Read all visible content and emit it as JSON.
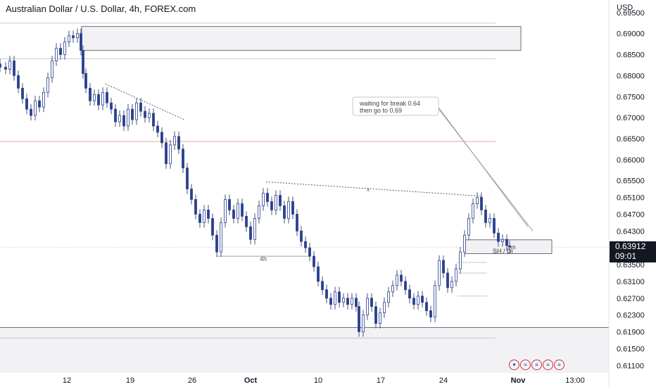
{
  "header": {
    "title": "Australian Dollar / U.S. Dollar, 4h, FOREX.com"
  },
  "price_axis": {
    "currency": "USD",
    "current_price": "0.63912",
    "countdown": "09:01"
  },
  "annotations": {
    "note_line1": "waiting for break 0.64",
    "note_line2": "then go to 0.69",
    "range_label": "4h",
    "trendline_mark": "x",
    "target_box_label": "SH / Di",
    "tiny_label": "m"
  },
  "events": {
    "flag_icons": [
      "au-flag-icon",
      "us-flag-icon",
      "us-flag-icon",
      "us-flag-icon",
      "us-flag-icon"
    ]
  },
  "colors": {
    "bull": "#ffffff",
    "bear": "#2a3f8f",
    "wick": "#4a5270",
    "zone_fill": "#f2f2f5",
    "zone_stroke": "#6b6f7a"
  },
  "chart_data": {
    "type": "candlestick",
    "title": "Australian Dollar / U.S. Dollar, 4h, FOREX.com",
    "ylabel": "USD",
    "ylim": [
      0.6092,
      0.698
    ],
    "y_ticks": [
      "0.69500",
      "0.69000",
      "0.68500",
      "0.68000",
      "0.67500",
      "0.67000",
      "0.66500",
      "0.66000",
      "0.65500",
      "0.65100",
      "0.64700",
      "0.64300",
      "0.63912",
      "0.63500",
      "0.63100",
      "0.62700",
      "0.62300",
      "0.61900",
      "0.61500",
      "0.61100"
    ],
    "x_ticks": [
      {
        "label": "12",
        "t": 95
      },
      {
        "label": "19",
        "t": 185
      },
      {
        "label": "26",
        "t": 273
      },
      {
        "label": "Oct",
        "t": 356
      },
      {
        "label": "10",
        "t": 452
      },
      {
        "label": "17",
        "t": 541
      },
      {
        "label": "24",
        "t": 630
      },
      {
        "label": "Nov",
        "t": 736
      },
      {
        "label": "13:00",
        "t": 817
      }
    ],
    "t_domain": [
      0,
      865
    ],
    "closes": [
      {
        "t": 0,
        "c": 0.682
      },
      {
        "t": 8,
        "c": 0.6815
      },
      {
        "t": 14,
        "c": 0.6835
      },
      {
        "t": 20,
        "c": 0.68
      },
      {
        "t": 26,
        "c": 0.677
      },
      {
        "t": 32,
        "c": 0.6745
      },
      {
        "t": 38,
        "c": 0.672
      },
      {
        "t": 44,
        "c": 0.6705
      },
      {
        "t": 50,
        "c": 0.674
      },
      {
        "t": 56,
        "c": 0.6725
      },
      {
        "t": 62,
        "c": 0.676
      },
      {
        "t": 68,
        "c": 0.6795
      },
      {
        "t": 74,
        "c": 0.6835
      },
      {
        "t": 80,
        "c": 0.6865
      },
      {
        "t": 86,
        "c": 0.685
      },
      {
        "t": 92,
        "c": 0.688
      },
      {
        "t": 98,
        "c": 0.6895
      },
      {
        "t": 104,
        "c": 0.689
      },
      {
        "t": 110,
        "c": 0.69
      },
      {
        "t": 115,
        "c": 0.686
      },
      {
        "t": 118,
        "c": 0.6805
      },
      {
        "t": 122,
        "c": 0.677
      },
      {
        "t": 128,
        "c": 0.674
      },
      {
        "t": 134,
        "c": 0.6755
      },
      {
        "t": 140,
        "c": 0.673
      },
      {
        "t": 146,
        "c": 0.676
      },
      {
        "t": 152,
        "c": 0.6735
      },
      {
        "t": 158,
        "c": 0.672
      },
      {
        "t": 164,
        "c": 0.669
      },
      {
        "t": 170,
        "c": 0.6705
      },
      {
        "t": 176,
        "c": 0.668
      },
      {
        "t": 182,
        "c": 0.672
      },
      {
        "t": 188,
        "c": 0.6695
      },
      {
        "t": 194,
        "c": 0.6735
      },
      {
        "t": 200,
        "c": 0.6715
      },
      {
        "t": 206,
        "c": 0.67
      },
      {
        "t": 212,
        "c": 0.671
      },
      {
        "t": 218,
        "c": 0.668
      },
      {
        "t": 224,
        "c": 0.6665
      },
      {
        "t": 230,
        "c": 0.664
      },
      {
        "t": 236,
        "c": 0.659
      },
      {
        "t": 242,
        "c": 0.6635
      },
      {
        "t": 248,
        "c": 0.6655
      },
      {
        "t": 254,
        "c": 0.6625
      },
      {
        "t": 260,
        "c": 0.658
      },
      {
        "t": 266,
        "c": 0.653
      },
      {
        "t": 272,
        "c": 0.6505
      },
      {
        "t": 278,
        "c": 0.647
      },
      {
        "t": 284,
        "c": 0.645
      },
      {
        "t": 290,
        "c": 0.648
      },
      {
        "t": 296,
        "c": 0.646
      },
      {
        "t": 302,
        "c": 0.642
      },
      {
        "t": 308,
        "c": 0.638
      },
      {
        "t": 314,
        "c": 0.645
      },
      {
        "t": 320,
        "c": 0.6505
      },
      {
        "t": 326,
        "c": 0.648
      },
      {
        "t": 332,
        "c": 0.646
      },
      {
        "t": 338,
        "c": 0.6495
      },
      {
        "t": 344,
        "c": 0.6465
      },
      {
        "t": 350,
        "c": 0.644
      },
      {
        "t": 356,
        "c": 0.641
      },
      {
        "t": 362,
        "c": 0.646
      },
      {
        "t": 368,
        "c": 0.649
      },
      {
        "t": 374,
        "c": 0.652
      },
      {
        "t": 380,
        "c": 0.65
      },
      {
        "t": 386,
        "c": 0.648
      },
      {
        "t": 392,
        "c": 0.6515
      },
      {
        "t": 398,
        "c": 0.649
      },
      {
        "t": 404,
        "c": 0.646
      },
      {
        "t": 410,
        "c": 0.65
      },
      {
        "t": 416,
        "c": 0.647
      },
      {
        "t": 422,
        "c": 0.643
      },
      {
        "t": 428,
        "c": 0.6405
      },
      {
        "t": 434,
        "c": 0.639
      },
      {
        "t": 440,
        "c": 0.637
      },
      {
        "t": 446,
        "c": 0.6345
      },
      {
        "t": 452,
        "c": 0.631
      },
      {
        "t": 458,
        "c": 0.629
      },
      {
        "t": 464,
        "c": 0.627
      },
      {
        "t": 470,
        "c": 0.6255
      },
      {
        "t": 476,
        "c": 0.6285
      },
      {
        "t": 482,
        "c": 0.626
      },
      {
        "t": 488,
        "c": 0.627
      },
      {
        "t": 494,
        "c": 0.6255
      },
      {
        "t": 500,
        "c": 0.627
      },
      {
        "t": 506,
        "c": 0.625
      },
      {
        "t": 510,
        "c": 0.619
      },
      {
        "t": 516,
        "c": 0.623
      },
      {
        "t": 522,
        "c": 0.627
      },
      {
        "t": 528,
        "c": 0.625
      },
      {
        "t": 534,
        "c": 0.621
      },
      {
        "t": 540,
        "c": 0.6235
      },
      {
        "t": 546,
        "c": 0.626
      },
      {
        "t": 552,
        "c": 0.6285
      },
      {
        "t": 558,
        "c": 0.63
      },
      {
        "t": 564,
        "c": 0.6325
      },
      {
        "t": 570,
        "c": 0.631
      },
      {
        "t": 576,
        "c": 0.629
      },
      {
        "t": 582,
        "c": 0.627
      },
      {
        "t": 588,
        "c": 0.6255
      },
      {
        "t": 594,
        "c": 0.6275
      },
      {
        "t": 600,
        "c": 0.626
      },
      {
        "t": 606,
        "c": 0.624
      },
      {
        "t": 612,
        "c": 0.6225
      },
      {
        "t": 618,
        "c": 0.63
      },
      {
        "t": 624,
        "c": 0.636
      },
      {
        "t": 630,
        "c": 0.633
      },
      {
        "t": 636,
        "c": 0.6295
      },
      {
        "t": 642,
        "c": 0.631
      },
      {
        "t": 648,
        "c": 0.634
      },
      {
        "t": 654,
        "c": 0.638
      },
      {
        "t": 660,
        "c": 0.642
      },
      {
        "t": 666,
        "c": 0.646
      },
      {
        "t": 672,
        "c": 0.6495
      },
      {
        "t": 678,
        "c": 0.651
      },
      {
        "t": 684,
        "c": 0.648
      },
      {
        "t": 690,
        "c": 0.645
      },
      {
        "t": 696,
        "c": 0.646
      },
      {
        "t": 702,
        "c": 0.6425
      },
      {
        "t": 708,
        "c": 0.6405
      },
      {
        "t": 714,
        "c": 0.641
      },
      {
        "t": 720,
        "c": 0.6395
      },
      {
        "t": 724,
        "c": 0.63912
      }
    ],
    "levels": {
      "supply_zone": [
        0.686,
        0.6917
      ],
      "demand_zone": [
        0.6092,
        0.62
      ],
      "demand_zone_edge": 0.6175,
      "supply_edge_top": 0.6925,
      "supply_edge_bottom": 0.684,
      "red_level": 0.6643,
      "current_price": 0.63912,
      "range_low": 0.637,
      "target_box": [
        0.638,
        0.6395
      ]
    },
    "trendlines": [
      {
        "from": {
          "t": 150,
          "p": 0.678
        },
        "to": {
          "t": 262,
          "p": 0.6695
        }
      },
      {
        "from": {
          "t": 378,
          "p": 0.6547
        },
        "to": {
          "t": 684,
          "p": 0.6513
        }
      },
      {
        "from": {
          "t": 612,
          "p": 0.6745
        },
        "to": {
          "t": 757,
          "p": 0.643
        }
      },
      {
        "from": {
          "t": 616,
          "p": 0.674
        },
        "to": {
          "t": 750,
          "p": 0.644
        }
      }
    ]
  }
}
